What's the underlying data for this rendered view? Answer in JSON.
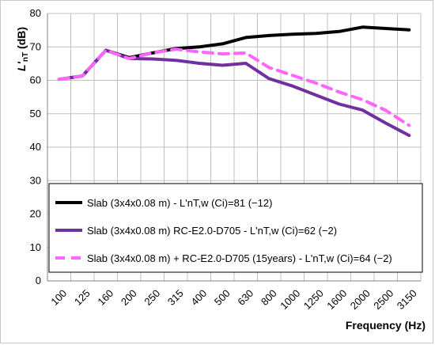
{
  "chart_data": {
    "type": "line",
    "title": "",
    "xlabel": "Frequency (Hz)",
    "ylabel_main": "L'",
    "ylabel_sub": "nT",
    "ylabel_unit": "(dB)",
    "ylim": [
      0,
      80
    ],
    "yticks": [
      "0",
      "10",
      "20",
      "30",
      "40",
      "50",
      "60",
      "70",
      "80"
    ],
    "categories": [
      "100",
      "125",
      "160",
      "200",
      "250",
      "315",
      "400",
      "500",
      "630",
      "800",
      "1000",
      "1250",
      "1600",
      "2000",
      "2500",
      "3150"
    ],
    "grid": true,
    "legend_position": "lower-left-inside",
    "series": [
      {
        "name": "Slab (3x4x0.08 m) - L'nT,w (Ci)=81 (−12)",
        "color": "#000000",
        "style": "solid",
        "values": [
          60.3,
          61.3,
          69.0,
          66.8,
          68.2,
          69.5,
          70.0,
          70.9,
          72.8,
          73.4,
          73.8,
          74.0,
          74.6,
          75.9,
          75.5,
          75.1
        ]
      },
      {
        "name": "Slab (3x4x0.08 m)   RC-E2.0-D705 - L'nT,w (Ci)=62 (−2)",
        "color": "#7030a0",
        "style": "solid",
        "values": [
          60.3,
          61.3,
          69.0,
          66.5,
          66.4,
          66.0,
          65.1,
          64.5,
          65.1,
          60.5,
          58.3,
          55.6,
          52.9,
          51.1,
          47.2,
          43.5
        ]
      },
      {
        "name": "Slab (3x4x0.08 m) + RC-E2.0-D705 (15years) - L'nT,w (Ci)=64 (−2)",
        "color": "#ff66ff",
        "style": "dashed",
        "values": [
          60.3,
          61.3,
          69.0,
          66.5,
          68.2,
          69.3,
          68.5,
          67.9,
          68.2,
          63.8,
          61.5,
          59.2,
          56.5,
          54.2,
          51.0,
          46.5
        ]
      }
    ]
  }
}
